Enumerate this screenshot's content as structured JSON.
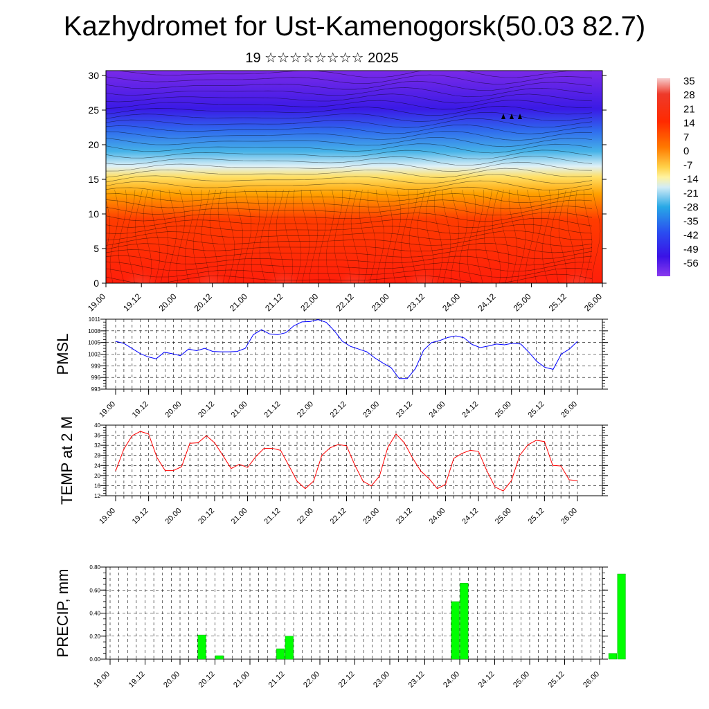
{
  "title": "Kazhydromet for Ust-Kamenogorsk(50.03 82.7)",
  "subtitle": "19 ☆☆☆☆☆☆☆☆ 2025",
  "chart_data": [
    {
      "type": "heatmap",
      "name": "cross-section",
      "x_labels": [
        "19.00",
        "19.12",
        "20.00",
        "20.12",
        "21.00",
        "21.12",
        "22.00",
        "22.12",
        "23.00",
        "23.12",
        "24.00",
        "24.12",
        "25.00",
        "25.12",
        "26.00"
      ],
      "y_ticks": [
        0,
        5,
        10,
        15,
        20,
        25,
        30
      ],
      "ylim": [
        0,
        30.7
      ],
      "colorbar_labels": [
        "35",
        "28",
        "21",
        "14",
        "7",
        "0",
        "-7",
        "-14",
        "-21",
        "-28",
        "-35",
        "-42",
        "-49",
        "-56"
      ],
      "colors": [
        "#f4c2c2",
        "#ee2a1a",
        "#ff5a00",
        "#ffa500",
        "#ffd24a",
        "#fff7a0",
        "#c9e7f4",
        "#3ab1e6",
        "#2a6cf0",
        "#3a1fe8",
        "#7b2bea"
      ]
    },
    {
      "type": "line",
      "name": "pmsl",
      "ylabel": "PMSL",
      "x_labels": [
        "19.00",
        "19.12",
        "20.00",
        "20.12",
        "21.00",
        "21.12",
        "22.00",
        "22.12",
        "23.00",
        "23.12",
        "24.00",
        "24.12",
        "25.00",
        "25.12",
        "26.00"
      ],
      "y_ticks": [
        993,
        996,
        999,
        1002,
        1005,
        1008,
        1011
      ],
      "ylim": [
        993,
        1011
      ],
      "color": "#0000ff",
      "values": [
        1005.3,
        1004.8,
        1003.5,
        1002.2,
        1001.3,
        1000.8,
        1002.5,
        1002.1,
        1001.6,
        1003.3,
        1002.9,
        1003.5,
        1002.7,
        1002.6,
        1002.6,
        1002.7,
        1003.5,
        1007.0,
        1008.3,
        1007.2,
        1007.0,
        1007.5,
        1009.3,
        1010.3,
        1010.4,
        1010.9,
        1010.2,
        1008.0,
        1005.3,
        1004.0,
        1003.3,
        1002.6,
        1001.0,
        999.7,
        998.5,
        995.7,
        995.7,
        998.3,
        1003.0,
        1005.0,
        1005.5,
        1006.3,
        1006.7,
        1006.2,
        1004.5,
        1003.7,
        1004.1,
        1004.6,
        1004.4,
        1004.8,
        1004.6,
        1002.5,
        1000.1,
        998.6,
        998.1,
        1002.0,
        1003.3,
        1005.3
      ]
    },
    {
      "type": "line",
      "name": "temp",
      "ylabel": "TEMP at 2 M",
      "x_labels": [
        "19.00",
        "19.12",
        "20.00",
        "20.12",
        "21.00",
        "21.12",
        "22.00",
        "22.12",
        "23.00",
        "23.12",
        "24.00",
        "24.12",
        "25.00",
        "25.12",
        "26.00"
      ],
      "y_ticks": [
        12,
        16,
        20,
        24,
        28,
        32,
        36,
        40
      ],
      "ylim": [
        12,
        40
      ],
      "color": "#ff0000",
      "values": [
        21.8,
        30.5,
        35.8,
        37.5,
        36.5,
        27.2,
        22.0,
        22.0,
        23.5,
        32.8,
        33.0,
        35.8,
        33.0,
        28.0,
        22.8,
        24.5,
        23.2,
        27.5,
        30.8,
        30.8,
        30.0,
        24.0,
        17.8,
        14.8,
        17.8,
        28.0,
        31.0,
        32.3,
        31.8,
        24.2,
        17.8,
        15.9,
        19.8,
        31.2,
        36.5,
        33.0,
        27.0,
        21.8,
        18.8,
        14.8,
        16.5,
        26.8,
        28.8,
        30.0,
        29.6,
        22.0,
        15.5,
        13.9,
        18.0,
        28.0,
        32.2,
        34.0,
        33.5,
        24.0,
        23.8,
        18.3,
        18.0
      ]
    },
    {
      "type": "bar",
      "name": "precip",
      "ylabel": "PRECIP, mm",
      "x_labels": [
        "19.00",
        "19.12",
        "20.00",
        "20.12",
        "21.00",
        "21.12",
        "22.00",
        "22.12",
        "23.00",
        "23.12",
        "24.00",
        "24.12",
        "25.00",
        "25.12",
        "26.00"
      ],
      "y_labels": [
        "0.00",
        "0.20",
        "0.40",
        "0.60",
        "0.80"
      ],
      "y_ticks": [
        0,
        0.2,
        0.4,
        0.6,
        0.8
      ],
      "ylim": [
        0,
        0.8
      ],
      "color": "#00ff00",
      "bars": [
        {
          "x_step": 10.5,
          "value": 0.21
        },
        {
          "x_step": 12.5,
          "value": 0.03
        },
        {
          "x_step": 19.5,
          "value": 0.09
        },
        {
          "x_step": 20.5,
          "value": 0.2
        },
        {
          "x_step": 39.5,
          "value": 0.5
        },
        {
          "x_step": 40.5,
          "value": 0.66
        },
        {
          "x_step": 57.5,
          "value": 0.05
        },
        {
          "x_step": 58.5,
          "value": 0.74
        }
      ]
    }
  ]
}
